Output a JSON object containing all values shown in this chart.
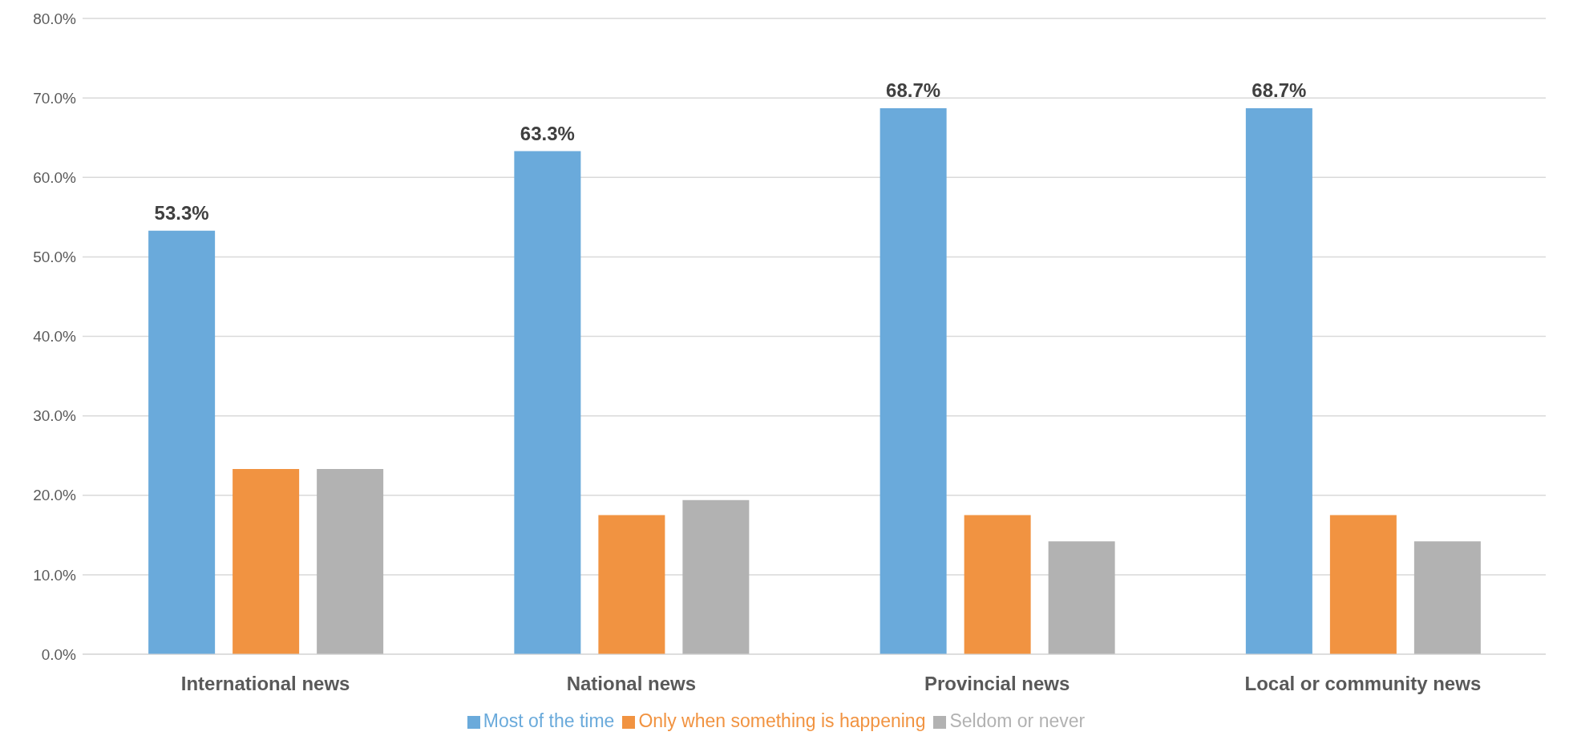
{
  "chart_data": {
    "type": "bar",
    "categories": [
      "International news",
      "National news",
      "Provincial news",
      "Local or community news"
    ],
    "series": [
      {
        "name": "Most of the time",
        "color": "#6aaadb",
        "values": [
          53.3,
          63.3,
          68.7,
          68.7
        ],
        "value_labels": [
          "53.3%",
          "63.3%",
          "68.7%",
          "68.7%"
        ]
      },
      {
        "name": "Only when something is happening",
        "color": "#f19341",
        "values": [
          23.3,
          17.5,
          17.5,
          17.5
        ]
      },
      {
        "name": "Seldom or never",
        "color": "#b2b2b2",
        "values": [
          23.3,
          19.4,
          14.2,
          14.2
        ]
      }
    ],
    "ylim": [
      0,
      80
    ],
    "yticks": [
      {
        "value": 0,
        "label": "0.0%"
      },
      {
        "value": 10,
        "label": "10.0%"
      },
      {
        "value": 20,
        "label": "20.0%"
      },
      {
        "value": 30,
        "label": "30.0%"
      },
      {
        "value": 40,
        "label": "40.0%"
      },
      {
        "value": 50,
        "label": "50.0%"
      },
      {
        "value": 60,
        "label": "60.0%"
      },
      {
        "value": 70,
        "label": "70.0%"
      },
      {
        "value": 80,
        "label": "80.0%"
      }
    ],
    "grid": "y",
    "legend": "bottom"
  }
}
